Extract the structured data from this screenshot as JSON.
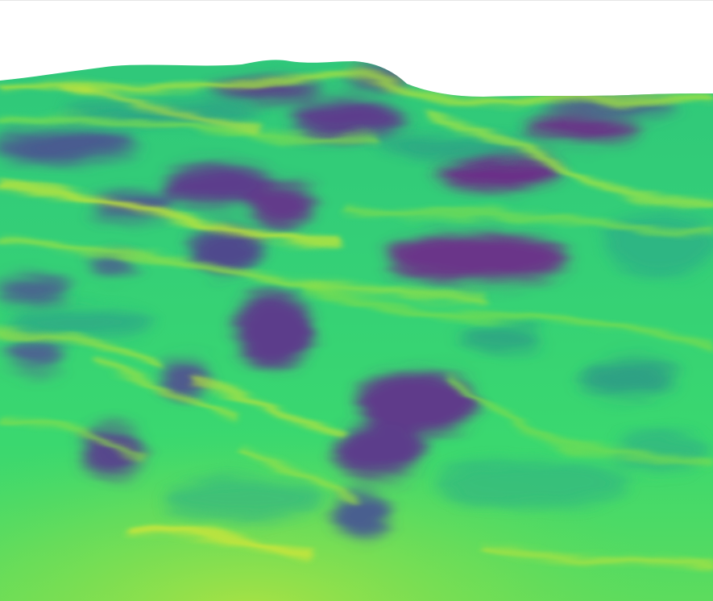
{
  "scene": {
    "subject": "3d-terrain-surface",
    "colormap": {
      "name": "viridis",
      "stops": [
        "#482777",
        "#3e4a89",
        "#2a788e",
        "#21a685",
        "#3ad96e",
        "#7de04f",
        "#c9e43a"
      ]
    },
    "background_color": "#ffffff",
    "frame_line_color": "#e6e6e6"
  }
}
